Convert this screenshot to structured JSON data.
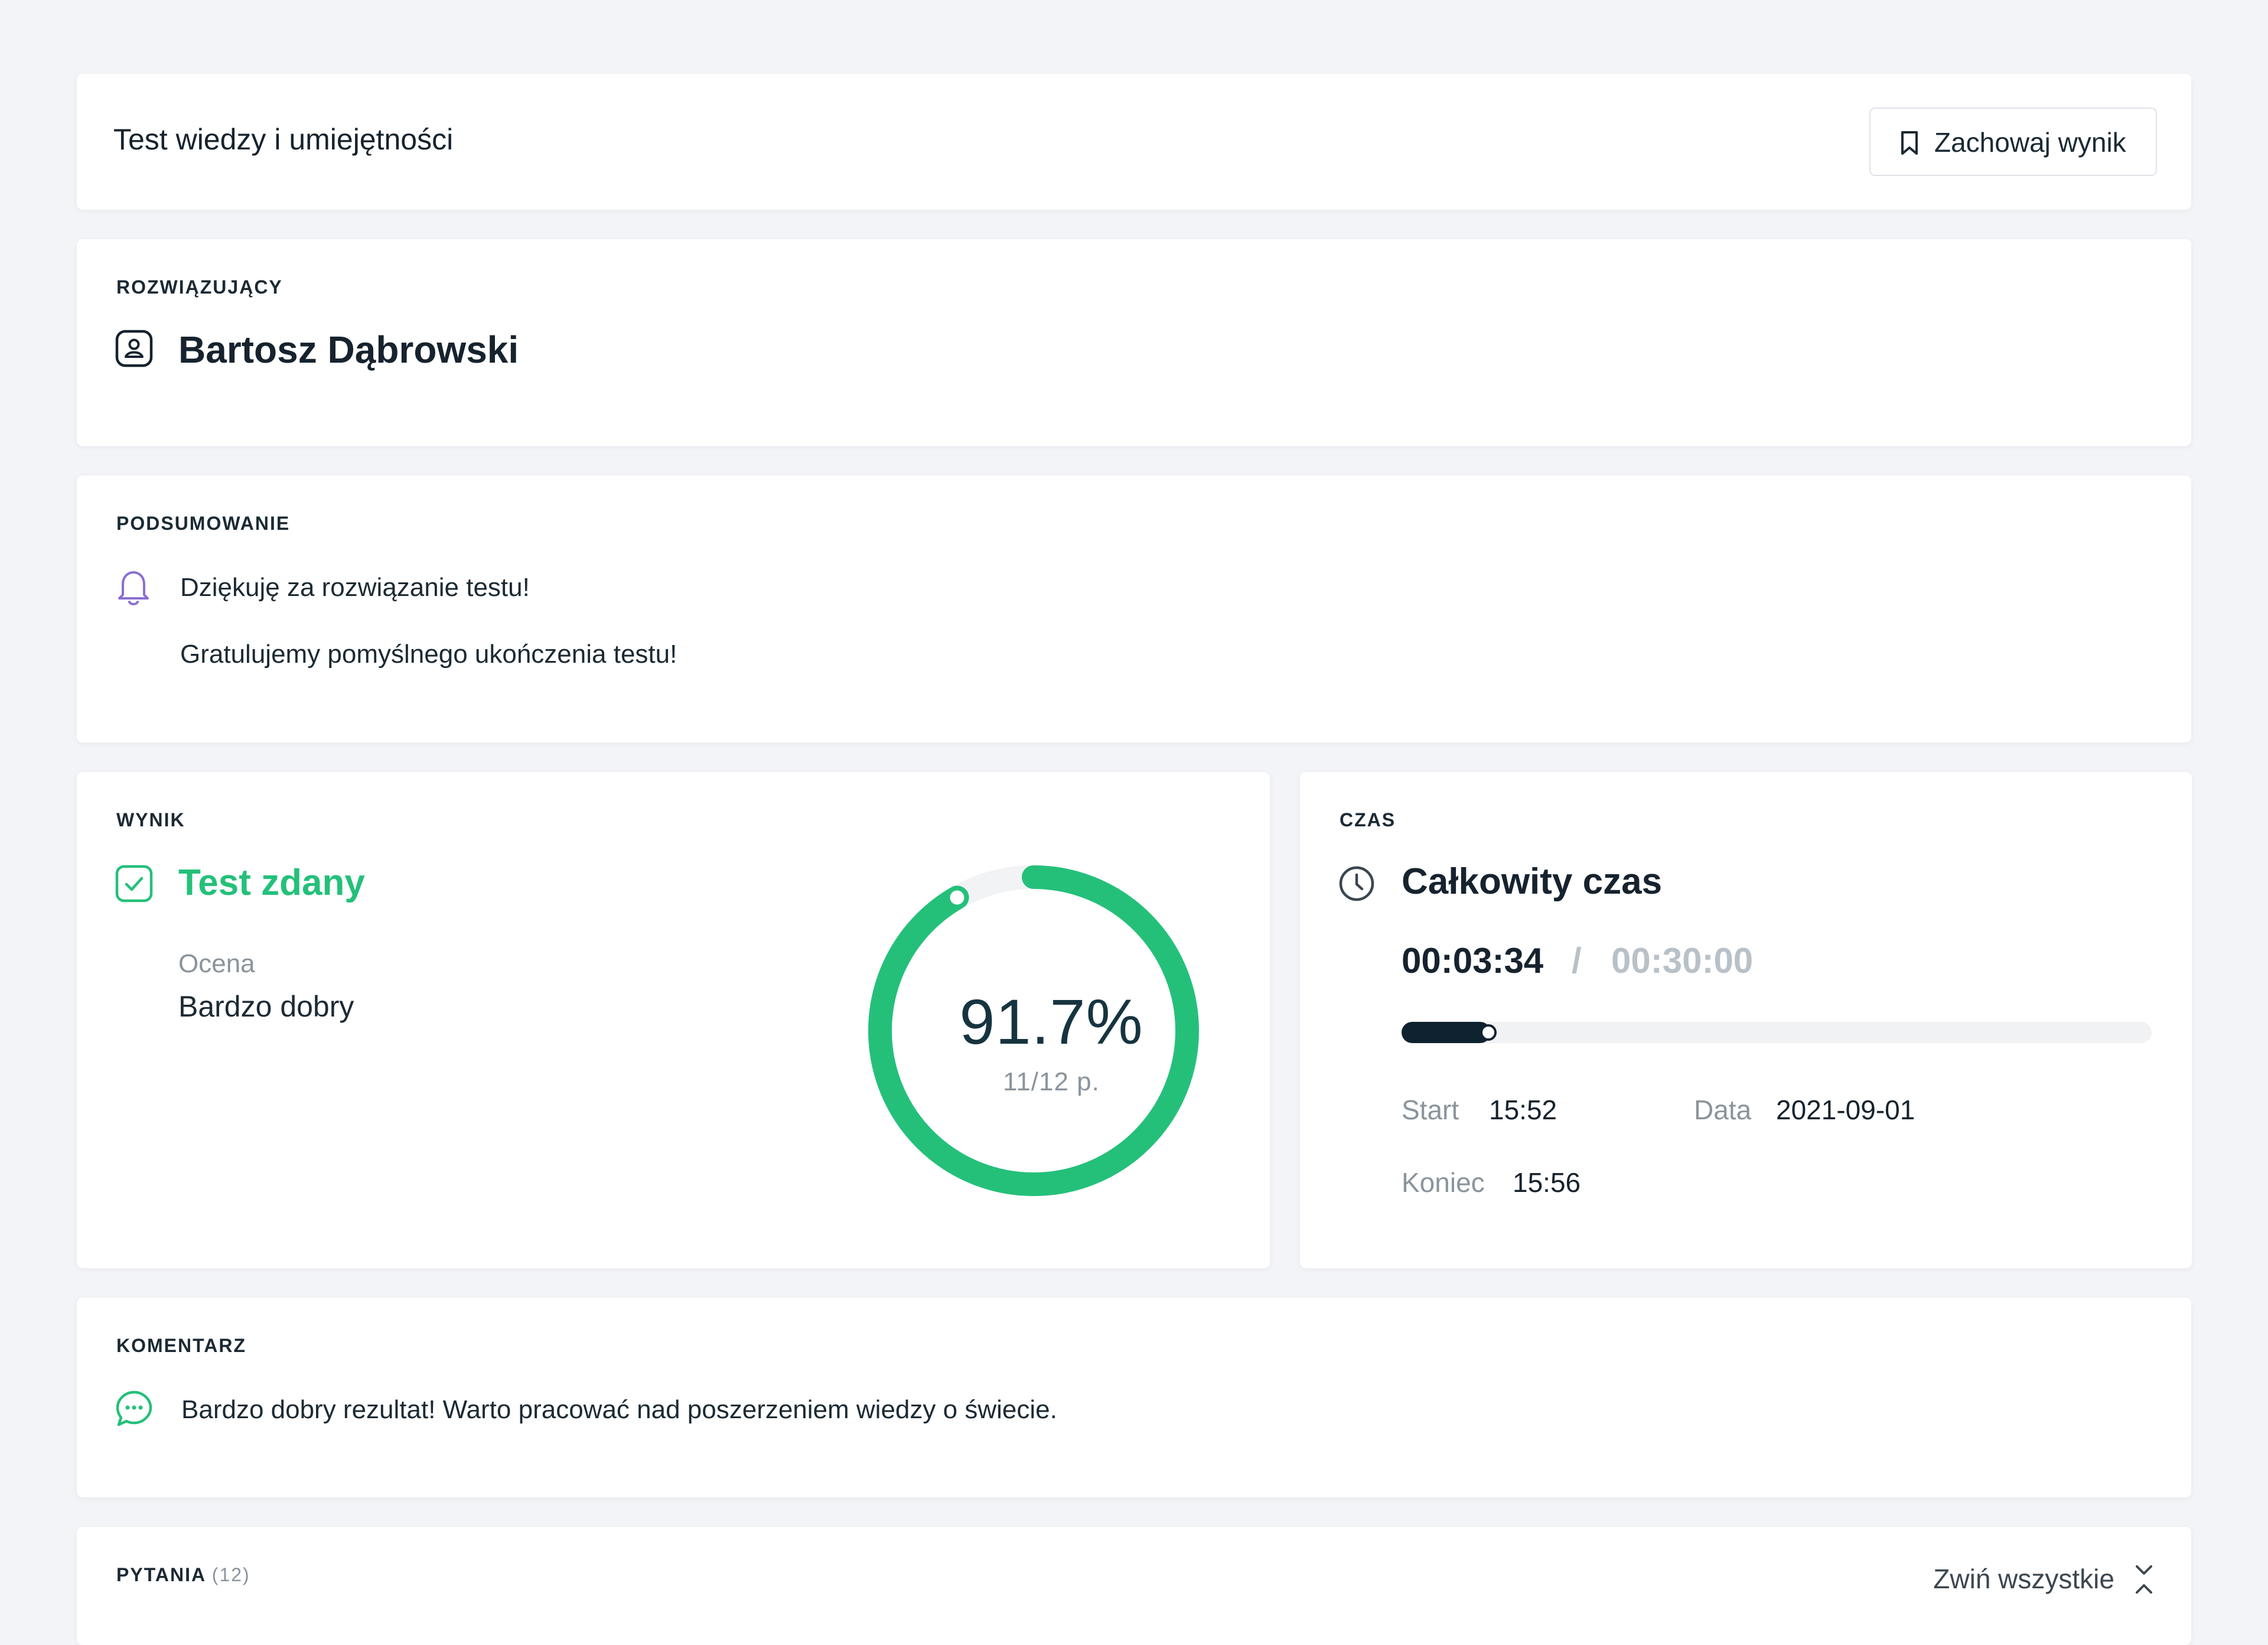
{
  "header": {
    "title": "Test wiedzy i umiejętności",
    "save_label": "Zachowaj wynik"
  },
  "solver": {
    "label": "ROZWIĄZUJĄCY",
    "name": "Bartosz Dąbrowski"
  },
  "summary": {
    "label": "PODSUMOWANIE",
    "line1": "Dziękuję za rozwiązanie testu!",
    "line2": "Gratulujemy pomyślnego ukończenia testu!"
  },
  "result": {
    "label": "WYNIK",
    "status": "Test zdany",
    "grade_label": "Ocena",
    "grade_value": "Bardzo dobry",
    "score_percent": "91.7%",
    "score_points": "11/12 p.",
    "score_fraction": 0.917,
    "accent_color": "#24c07a"
  },
  "time": {
    "label": "CZAS",
    "title": "Całkowity czas",
    "elapsed": "00:03:34",
    "separator": "/",
    "limit": "00:30:00",
    "progress_fraction": 0.119,
    "start_label": "Start",
    "start_value": "15:52",
    "date_label": "Data",
    "date_value": "2021-09-01",
    "end_label": "Koniec",
    "end_value": "15:56"
  },
  "comment": {
    "label": "KOMENTARZ",
    "text": "Bardzo dobry rezultat! Warto pracować nad poszerzeniem wiedzy o świecie."
  },
  "questions": {
    "label": "PYTANIA",
    "count": "(12)",
    "collapse_label": "Zwiń wszystkie"
  },
  "icons": {
    "save": "bookmark-icon",
    "solver": "user-badge-icon",
    "summary": "bell-icon",
    "result": "checkbox-checked-icon",
    "time": "clock-icon",
    "comment": "chat-bubble-icon",
    "collapse": "collapse-chevrons-icon"
  }
}
